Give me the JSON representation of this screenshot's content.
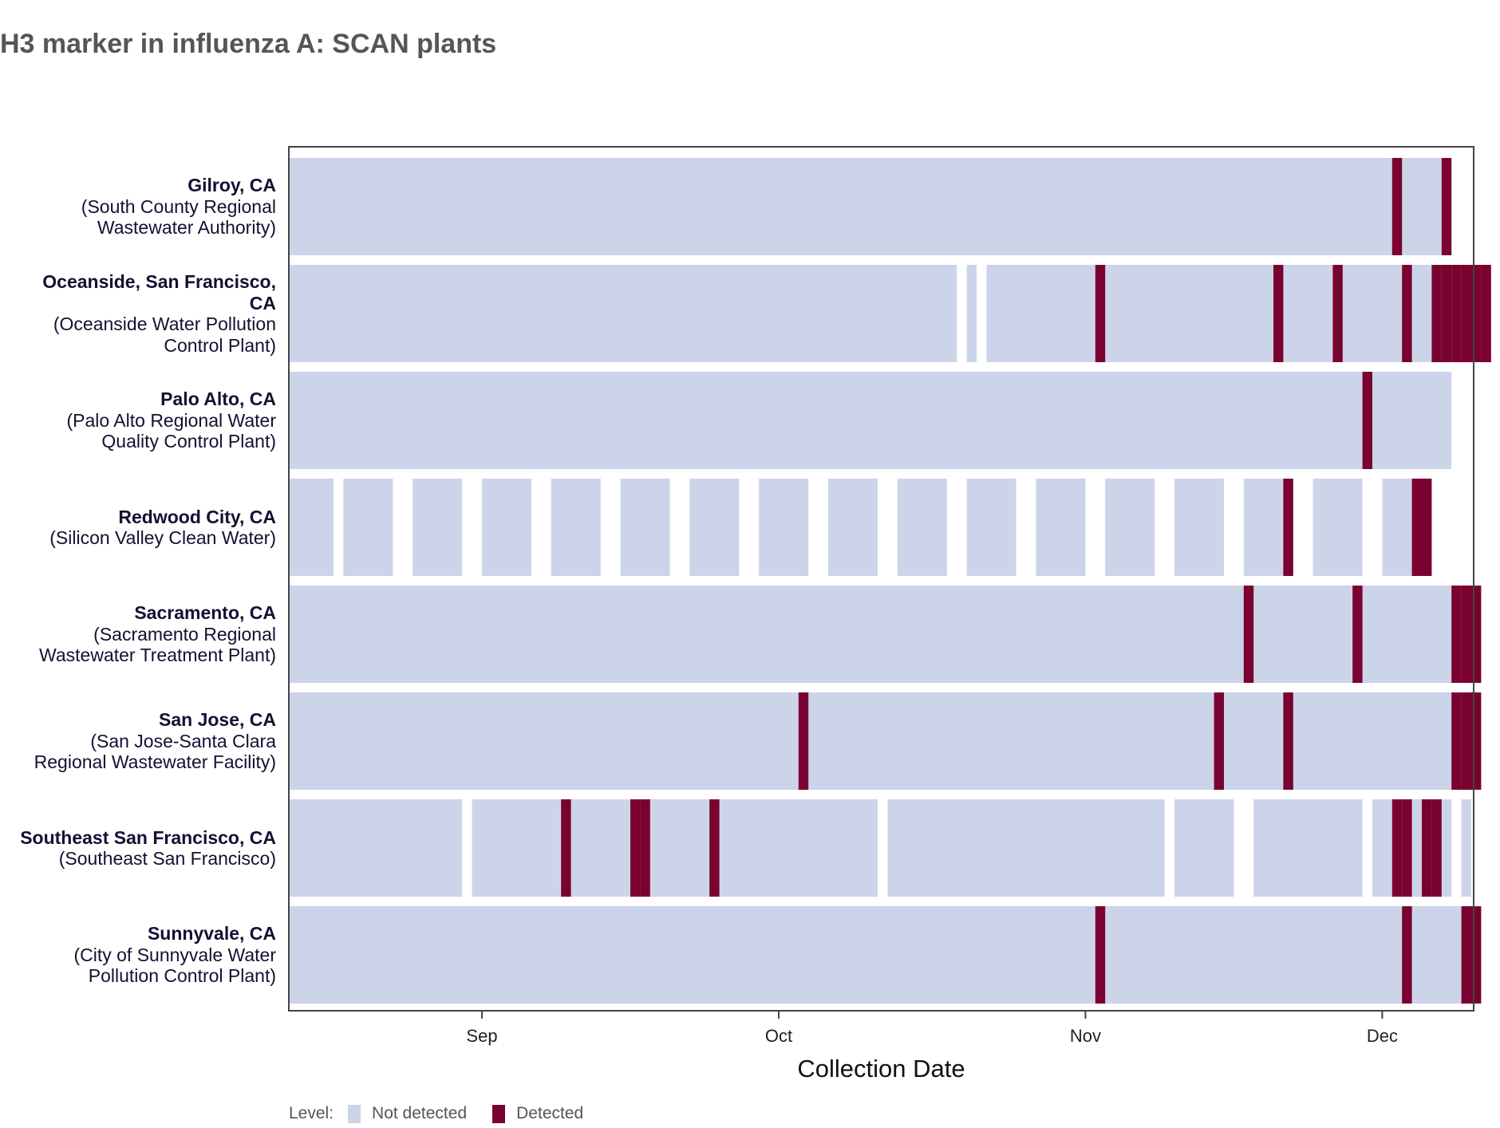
{
  "title": "H3 marker in influenza A: SCAN plants",
  "colors": {
    "not_detected": "#ccd4ea",
    "detected": "#7a0230",
    "frame": "#444444"
  },
  "legend": {
    "title": "Level:",
    "items": [
      "Not detected",
      "Detected"
    ]
  },
  "chart_data": {
    "type": "heatmap",
    "title": "H3 marker in influenza A: SCAN plants",
    "xlabel": "Collection Date",
    "ylabel": "",
    "x_ticks": [
      {
        "label": "Sep",
        "date": "2024-09-01"
      },
      {
        "label": "Oct",
        "date": "2024-10-01"
      },
      {
        "label": "Nov",
        "date": "2024-11-01"
      },
      {
        "label": "Dec",
        "date": "2024-12-01"
      }
    ],
    "xlim": [
      "2024-08-12",
      "2024-12-09"
    ],
    "legend": {
      "title": "Level:",
      "levels": [
        "Not detected",
        "Detected"
      ]
    },
    "rows": [
      {
        "location": "Gilroy, CA",
        "plant": "(South County Regional Wastewater Authority)",
        "samples": [
          "2024-08-12/2024-12-06"
        ],
        "detected": [
          "2024-12-02",
          "2024-12-07"
        ]
      },
      {
        "location": "Oceanside, San Francisco, CA",
        "plant": "(Oceanside Water Pollution Control Plant)",
        "samples": [
          "2024-08-12/2024-10-18",
          "2024-10-20",
          "2024-10-22/2024-12-09"
        ],
        "detected": [
          "2024-11-02",
          "2024-11-20",
          "2024-11-26",
          "2024-12-03",
          "2024-12-06",
          "2024-12-07",
          "2024-12-08",
          "2024-12-09",
          "2024-12-10",
          "2024-12-11"
        ]
      },
      {
        "location": "Palo Alto, CA",
        "plant": "(Palo Alto Regional Water Quality Control Plant)",
        "samples": [
          "2024-08-12/2024-12-07"
        ],
        "detected": [
          "2024-11-29"
        ]
      },
      {
        "location": "Redwood City, CA",
        "plant": "(Silicon Valley Clean Water)",
        "samples": [
          "2024-08-12/2024-08-16",
          "2024-08-18/2024-08-22",
          "2024-08-25/2024-08-29",
          "2024-09-01/2024-09-05",
          "2024-09-08/2024-09-12",
          "2024-09-15/2024-09-19",
          "2024-09-22/2024-09-26",
          "2024-09-29/2024-10-03",
          "2024-10-06/2024-10-10",
          "2024-10-13/2024-10-17",
          "2024-10-20/2024-10-24",
          "2024-10-27/2024-10-31",
          "2024-11-03/2024-11-07",
          "2024-11-10/2024-11-14",
          "2024-11-17/2024-11-21",
          "2024-11-24/2024-11-28",
          "2024-12-01/2024-12-05"
        ],
        "detected": [
          "2024-11-21",
          "2024-12-04",
          "2024-12-05"
        ]
      },
      {
        "location": "Sacramento, CA",
        "plant": "(Sacramento Regional Wastewater Treatment Plant)",
        "samples": [
          "2024-08-12/2024-12-09"
        ],
        "detected": [
          "2024-11-17",
          "2024-11-28",
          "2024-12-08",
          "2024-12-09",
          "2024-12-10"
        ]
      },
      {
        "location": "San Jose, CA",
        "plant": "(San Jose-Santa Clara Regional Wastewater Facility)",
        "samples": [
          "2024-08-12/2024-12-09"
        ],
        "detected": [
          "2024-10-03",
          "2024-11-14",
          "2024-11-21",
          "2024-12-08",
          "2024-12-09",
          "2024-12-10"
        ]
      },
      {
        "location": "Southeast San Francisco, CA",
        "plant": "(Southeast San Francisco)",
        "samples": [
          "2024-08-12/2024-08-29",
          "2024-08-31/2024-10-10",
          "2024-10-12/2024-11-08",
          "2024-11-10/2024-11-15",
          "2024-11-18/2024-11-28",
          "2024-11-30/2024-12-07",
          "2024-12-09"
        ],
        "detected": [
          "2024-09-09",
          "2024-09-16",
          "2024-09-17",
          "2024-09-24",
          "2024-12-02",
          "2024-12-03",
          "2024-12-05",
          "2024-12-06"
        ]
      },
      {
        "location": "Sunnyvale, CA",
        "plant": "(City of Sunnyvale Water Pollution Control Plant)",
        "samples": [
          "2024-08-12/2024-12-09"
        ],
        "detected": [
          "2024-11-02",
          "2024-12-03",
          "2024-12-09",
          "2024-12-10"
        ]
      }
    ]
  }
}
